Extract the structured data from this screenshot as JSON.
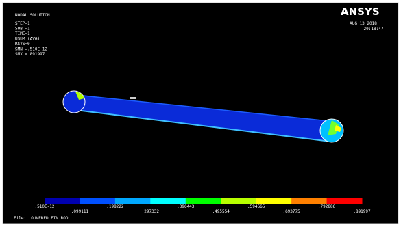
{
  "header": {
    "title": "NODAL SOLUTION",
    "lines": [
      "STEP=1",
      "SUB =1",
      "TIME=1",
      "USUM     (AVG)",
      "RSYS=0",
      "SMN =.510E-12",
      "SMX =.891997"
    ]
  },
  "brand": {
    "logo": "ANSYS",
    "date": "AUG 13 2018",
    "time": "20:18:47"
  },
  "legend": {
    "labels": [
      ".510E-12",
      ".099111",
      ".198222",
      ".297332",
      ".396443",
      ".495554",
      ".594665",
      ".693775",
      ".792886",
      ".891997"
    ]
  },
  "footer": {
    "file": "File: LOUVERED FIN ROD"
  }
}
